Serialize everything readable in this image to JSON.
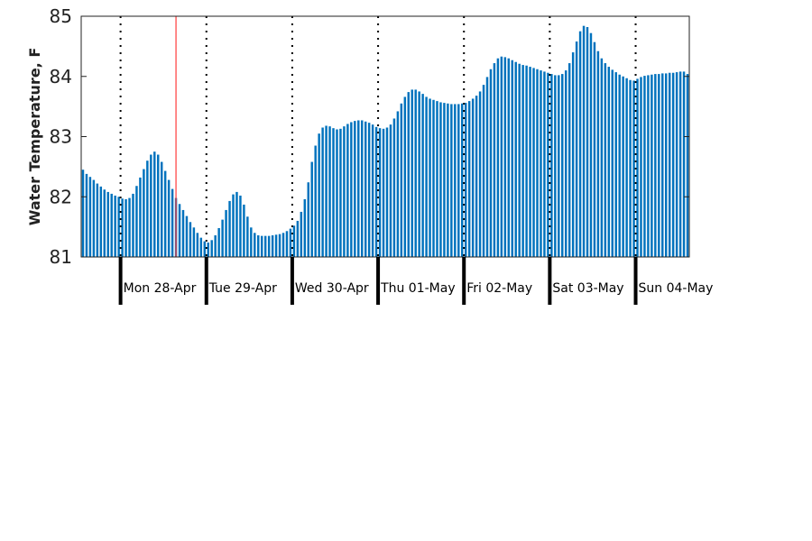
{
  "chart_data": {
    "type": "bar",
    "ylabel": "Water Temperature, F",
    "ylim": [
      81,
      85
    ],
    "yticks": [
      "81",
      "82",
      "83",
      "84",
      "85"
    ],
    "grid": false,
    "bar_color": "#0072bd",
    "marker_color": "#ff3b3b",
    "day_labels": [
      "Mon 28-Apr",
      "Tue 29-Apr",
      "Wed 30-Apr",
      "Thu 01-May",
      "Fri 02-May",
      "Sat 03-May",
      "Sun 04-May"
    ],
    "bars_per_day": 24,
    "first_day_offset_bars": 11,
    "marker_bar_index": 26,
    "values": [
      82.45,
      82.38,
      82.33,
      82.28,
      82.22,
      82.17,
      82.12,
      82.08,
      82.05,
      82.02,
      82.0,
      81.97,
      81.96,
      81.98,
      82.05,
      82.18,
      82.32,
      82.46,
      82.6,
      82.7,
      82.75,
      82.7,
      82.58,
      82.43,
      82.28,
      82.13,
      81.98,
      81.88,
      81.78,
      81.68,
      81.58,
      81.49,
      81.4,
      81.32,
      81.26,
      81.24,
      81.28,
      81.36,
      81.48,
      81.62,
      81.78,
      81.93,
      82.04,
      82.08,
      82.02,
      81.87,
      81.67,
      81.49,
      81.4,
      81.36,
      81.35,
      81.35,
      81.35,
      81.36,
      81.37,
      81.38,
      81.4,
      81.43,
      81.47,
      81.52,
      81.6,
      81.75,
      81.96,
      82.24,
      82.58,
      82.85,
      83.05,
      83.15,
      83.18,
      83.17,
      83.14,
      83.12,
      83.13,
      83.17,
      83.21,
      83.24,
      83.26,
      83.27,
      83.27,
      83.25,
      83.23,
      83.2,
      83.16,
      83.14,
      83.13,
      83.15,
      83.2,
      83.3,
      83.42,
      83.55,
      83.66,
      83.74,
      83.78,
      83.78,
      83.75,
      83.71,
      83.66,
      83.63,
      83.61,
      83.59,
      83.57,
      83.56,
      83.55,
      83.54,
      83.54,
      83.54,
      83.55,
      83.56,
      83.59,
      83.63,
      83.68,
      83.75,
      83.86,
      83.99,
      84.12,
      84.22,
      84.3,
      84.33,
      84.32,
      84.3,
      84.27,
      84.24,
      84.21,
      84.19,
      84.18,
      84.16,
      84.14,
      84.12,
      84.1,
      84.08,
      84.06,
      84.04,
      84.02,
      84.02,
      84.04,
      84.1,
      84.22,
      84.4,
      84.58,
      84.75,
      84.84,
      84.82,
      84.72,
      84.57,
      84.42,
      84.3,
      84.22,
      84.16,
      84.11,
      84.07,
      84.03,
      84.0,
      83.97,
      83.94,
      83.93,
      83.96,
      83.99,
      84.01,
      84.02,
      84.03,
      84.04,
      84.04,
      84.05,
      84.05,
      84.06,
      84.06,
      84.07,
      84.08,
      84.08,
      84.04
    ]
  }
}
